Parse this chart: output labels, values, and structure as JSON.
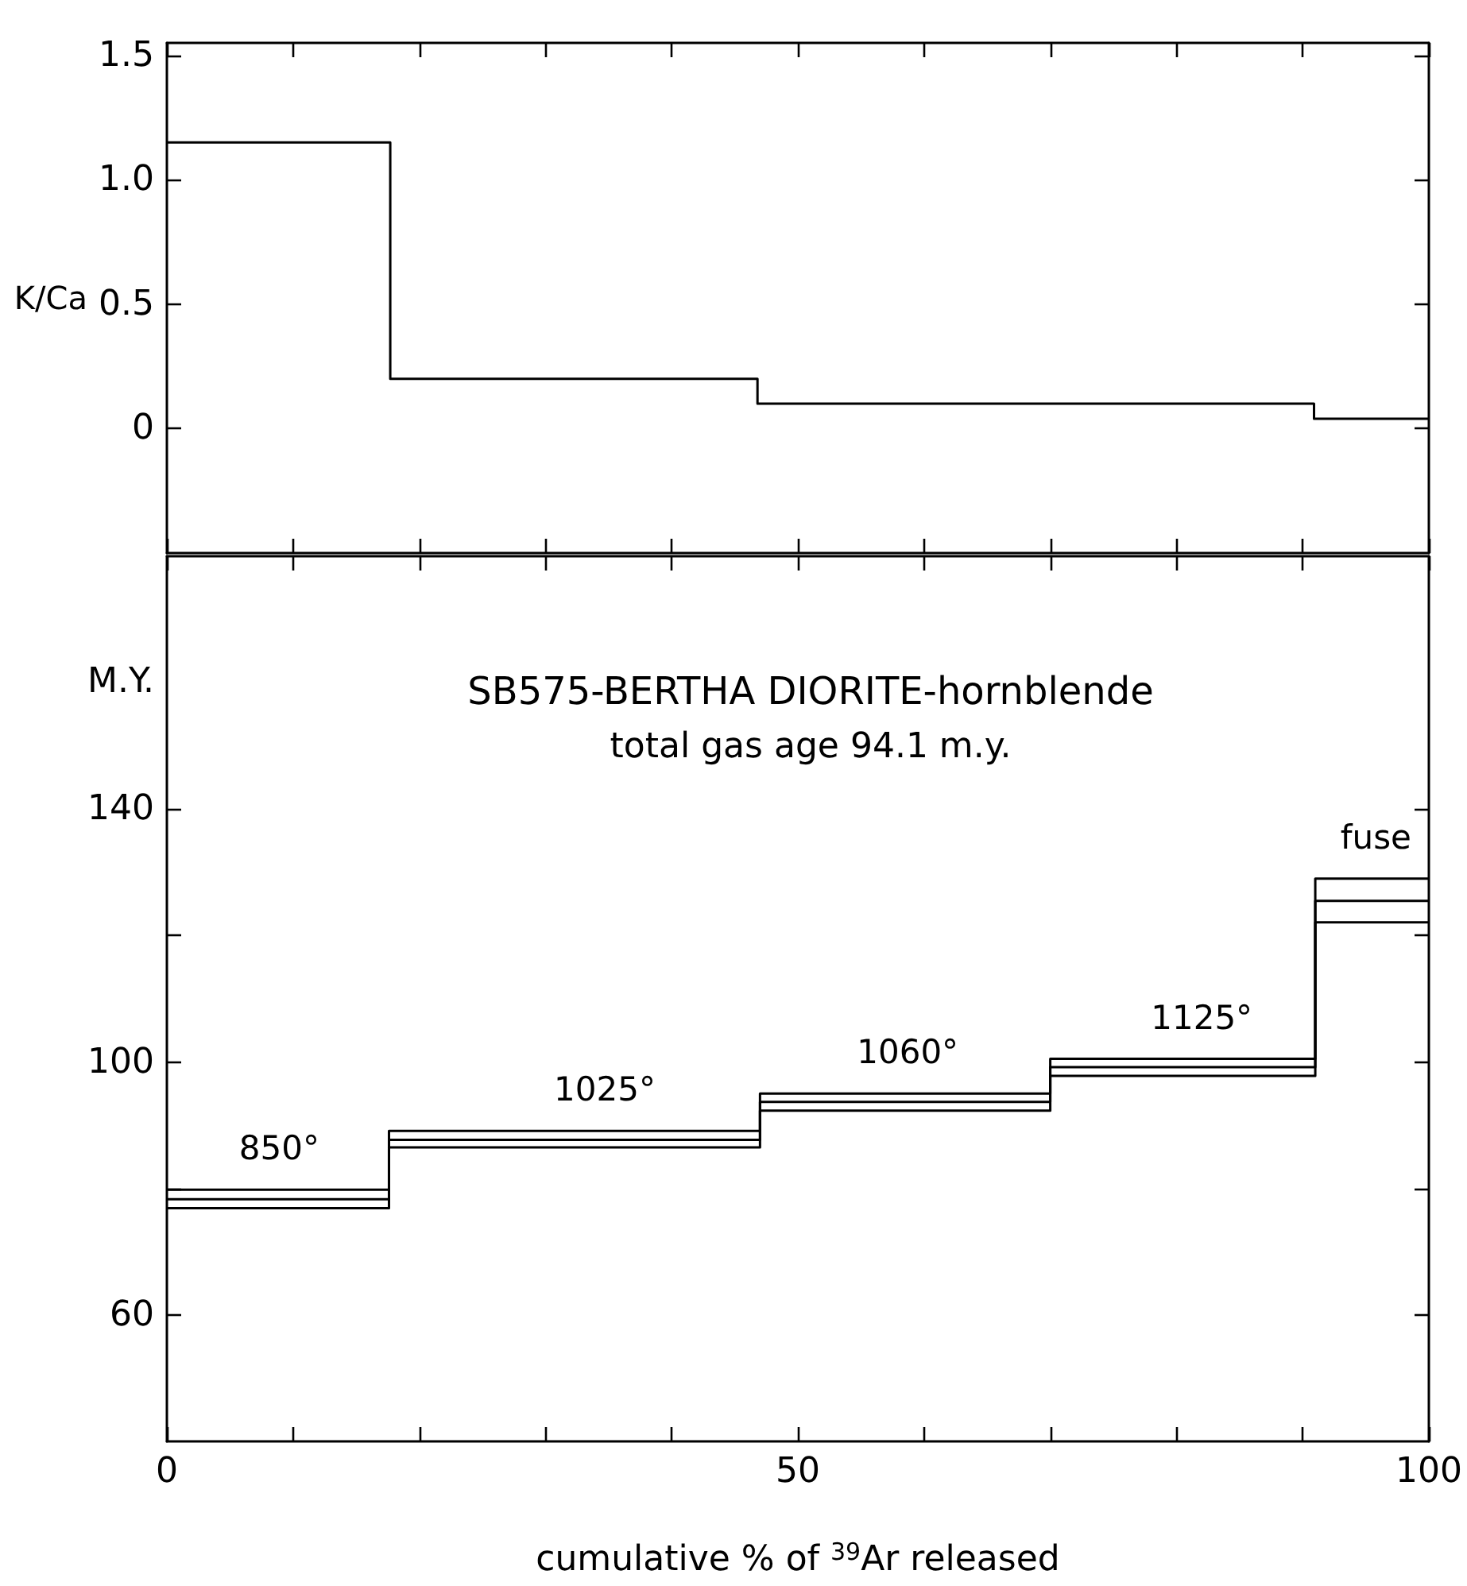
{
  "chart_data": [
    {
      "type": "step",
      "ylabel": "K/Ca",
      "x": [
        0,
        17.7,
        46.8,
        90.9,
        100
      ],
      "series": [
        {
          "color": "#000000",
          "values": [
            1.15,
            0.2,
            0.1,
            0.04,
            0.04
          ]
        }
      ],
      "xlim": [
        0,
        100
      ],
      "xticks": [
        {
          "value": 0,
          "label": null
        },
        {
          "value": 10,
          "label": null
        },
        {
          "value": 20,
          "label": null
        },
        {
          "value": 30,
          "label": null
        },
        {
          "value": 40,
          "label": null
        },
        {
          "value": 50,
          "label": null
        },
        {
          "value": 60,
          "label": null
        },
        {
          "value": 70,
          "label": null
        },
        {
          "value": 80,
          "label": null
        },
        {
          "value": 90,
          "label": null
        },
        {
          "value": 100,
          "label": null
        }
      ],
      "ylim": [
        -0.5,
        1.55
      ],
      "yticks": [
        0,
        0.5,
        {
          "value": 1,
          "label": "1.0"
        },
        1.5
      ],
      "tick_labels": "y",
      "grid": false,
      "marker": "none"
    },
    {
      "type": "step",
      "title": "SB575-BERTHA DIORITE-hornblende",
      "subtitle": "total gas age 94.1 m.y.",
      "xlabel": "cumulative % of $^{39}$Ar released",
      "ylabel": "M.Y.",
      "x": [
        0,
        17.6,
        47,
        70,
        91,
        100
      ],
      "series": [
        {
          "color": "#000000",
          "values": [
            79.8,
            89.1,
            95.0,
            100.5,
            129.0,
            129.0
          ]
        },
        {
          "color": "#000000",
          "values": [
            78.3,
            87.7,
            93.7,
            99.2,
            125.5,
            125.5
          ]
        },
        {
          "color": "#000000",
          "values": [
            76.9,
            86.5,
            92.3,
            97.8,
            122.1,
            122.1
          ]
        }
      ],
      "xlim": [
        0,
        100
      ],
      "xticks": [
        0,
        {
          "value": 10,
          "label": null
        },
        {
          "value": 20,
          "label": null
        },
        {
          "value": 30,
          "label": null
        },
        {
          "value": 40,
          "label": null
        },
        50,
        {
          "value": 60,
          "label": null
        },
        {
          "value": 70,
          "label": null
        },
        {
          "value": 80,
          "label": null
        },
        {
          "value": 90,
          "label": null
        },
        100
      ],
      "ylim": [
        40,
        180
      ],
      "yticks": [
        60,
        {
          "value": 80,
          "label": null
        },
        100,
        {
          "value": 120,
          "label": null
        },
        140
      ],
      "annotations": [
        {
          "text": "850°",
          "x": 8.9,
          "y": 79.8
        },
        {
          "text": "1025°",
          "x": 34.7,
          "y": 89.1
        },
        {
          "text": "1060°",
          "x": 58.7,
          "y": 95.0
        },
        {
          "text": "1125°",
          "x": 82,
          "y": 100.5
        },
        {
          "text": "fuse",
          "x": 95.8,
          "y": 129.0
        }
      ],
      "grid": false,
      "marker": "none"
    }
  ]
}
